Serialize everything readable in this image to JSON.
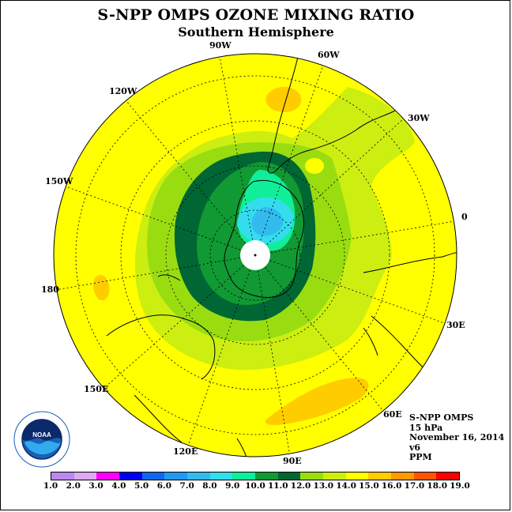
{
  "title": "S-NPP OMPS OZONE MIXING RATIO",
  "subtitle": "Southern Hemisphere",
  "longitude_labels": {
    "lon_90w": "90W",
    "lon_60w": "60W",
    "lon_30w": "30W",
    "lon_120w": "120W",
    "lon_150w": "150W",
    "lon_0": "0",
    "lon_180": "180",
    "lon_30e": "30E",
    "lon_150e": "150E",
    "lon_60e": "60E",
    "lon_120e": "120E",
    "lon_90e": "90E"
  },
  "info": {
    "instrument": "S-NPP OMPS",
    "level": "15 hPa",
    "date": "November 16, 2014",
    "version": "v6",
    "units": "PPM"
  },
  "logo_text": "NOAA",
  "colorbar": {
    "ticks": [
      "1.0",
      "2.0",
      "3.0",
      "4.0",
      "5.0",
      "6.0",
      "7.0",
      "8.0",
      "9.0",
      "10.0",
      "11.0",
      "12.0",
      "13.0",
      "14.0",
      "15.0",
      "16.0",
      "17.0",
      "18.0",
      "19.0"
    ],
    "colors": [
      "#bb88ee",
      "#ddaaee",
      "#ff00ff",
      "#0000ee",
      "#1166ee",
      "#2299ee",
      "#33bbee",
      "#33ddee",
      "#11ee99",
      "#119933",
      "#006633",
      "#99dd11",
      "#ccee11",
      "#ffff00",
      "#ffcc00",
      "#ff9900",
      "#ff5500",
      "#ff0000",
      "#886633"
    ]
  }
}
